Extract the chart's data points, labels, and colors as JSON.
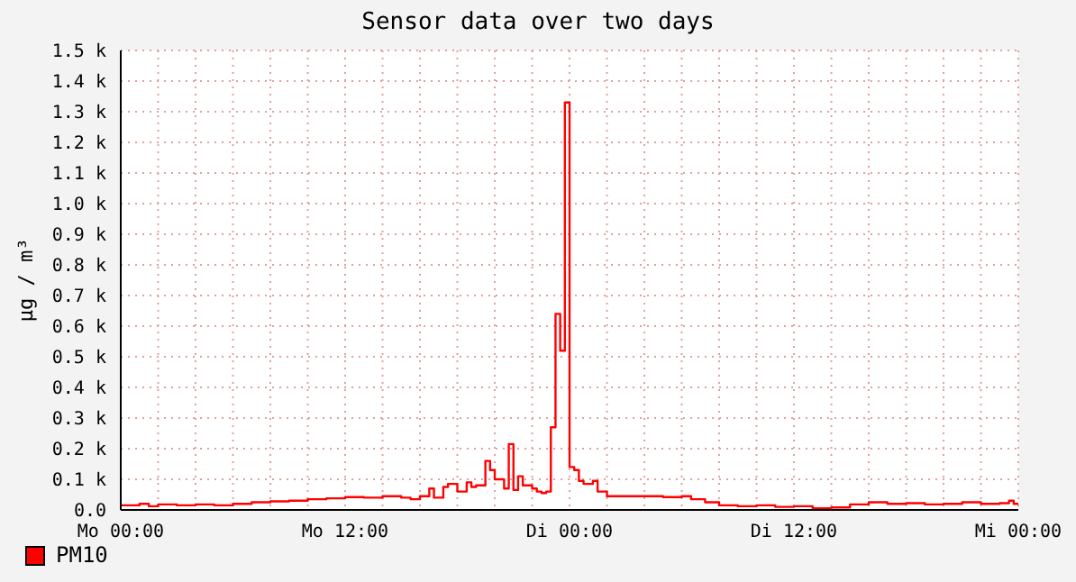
{
  "chart_data": {
    "type": "step",
    "title": "Sensor data over two days",
    "ylabel": "µg / m³",
    "categories": [
      "Mo 00:00",
      null,
      null,
      null,
      null,
      null,
      null,
      null,
      null,
      null,
      null,
      null,
      null,
      null,
      null,
      null,
      null,
      null,
      null,
      null,
      null,
      null,
      null,
      null,
      null,
      null,
      null,
      null,
      null,
      null,
      null,
      null,
      null,
      null,
      null,
      null,
      null,
      null,
      null,
      null,
      null,
      null,
      null,
      null,
      null,
      null,
      null,
      null,
      "Mo 12:00",
      null,
      null,
      null,
      null,
      null,
      null,
      null,
      null,
      null,
      null,
      null,
      null,
      null,
      null,
      null,
      null,
      null,
      null,
      null,
      null,
      null,
      null,
      null,
      null,
      null,
      null,
      null,
      null,
      null,
      null,
      null,
      null,
      null,
      null,
      null,
      null,
      null,
      null,
      null,
      null,
      null,
      null,
      null,
      null,
      null,
      null,
      null,
      "Di 00:00",
      null,
      null,
      null,
      null,
      null,
      null,
      null,
      null,
      null,
      null,
      null,
      null,
      null,
      null,
      null,
      null,
      null,
      null,
      null,
      null,
      null,
      null,
      null,
      null,
      null,
      null,
      null,
      null,
      null,
      null,
      null,
      null,
      null,
      null,
      null,
      null,
      null,
      null,
      null,
      null,
      null,
      null,
      null,
      null,
      null,
      null,
      null,
      "Di 12:00",
      null,
      null,
      null,
      null,
      null,
      null,
      null,
      null,
      null,
      null,
      null,
      null,
      null,
      null,
      null,
      null,
      null,
      null,
      null,
      null,
      null,
      null,
      null,
      null,
      null,
      null,
      null,
      null,
      null,
      null,
      null,
      null,
      null,
      null,
      null,
      null,
      null,
      null,
      null,
      null,
      null,
      null,
      null,
      null,
      null,
      null,
      null,
      "Mi 00:00"
    ],
    "series": [
      {
        "name": "PM10",
        "color": "#ff0000",
        "values": [
          15,
          15,
          15,
          15,
          20,
          20,
          12,
          12,
          18,
          18,
          18,
          18,
          15,
          15,
          15,
          15,
          18,
          18,
          18,
          18,
          15,
          15,
          15,
          15,
          20,
          20,
          20,
          20,
          25,
          25,
          25,
          25,
          28,
          28,
          28,
          28,
          30,
          30,
          30,
          30,
          35,
          35,
          35,
          35,
          38,
          38,
          38,
          38,
          42,
          42,
          42,
          42,
          40,
          40,
          40,
          40,
          45,
          45,
          45,
          45,
          40,
          40,
          35,
          35,
          45,
          45,
          70,
          40,
          40,
          75,
          85,
          85,
          60,
          60,
          90,
          75,
          80,
          80,
          160,
          130,
          100,
          100,
          70,
          215,
          65,
          110,
          80,
          80,
          70,
          60,
          55,
          60,
          270,
          640,
          520,
          1330,
          140,
          130,
          95,
          85,
          85,
          95,
          60,
          60,
          45,
          45,
          45,
          45,
          45,
          45,
          45,
          45,
          45,
          45,
          45,
          45,
          42,
          42,
          42,
          42,
          45,
          45,
          35,
          35,
          35,
          25,
          25,
          25,
          15,
          15,
          15,
          15,
          12,
          12,
          12,
          12,
          15,
          15,
          15,
          15,
          10,
          10,
          10,
          10,
          12,
          12,
          12,
          12,
          5,
          5,
          5,
          5,
          8,
          8,
          8,
          8,
          18,
          18,
          18,
          18,
          25,
          25,
          25,
          25,
          20,
          20,
          20,
          20,
          22,
          22,
          22,
          22,
          18,
          18,
          18,
          18,
          20,
          20,
          20,
          20,
          25,
          25,
          25,
          25,
          20,
          20,
          20,
          20,
          22,
          22,
          30,
          20,
          20
        ]
      }
    ],
    "ylim": [
      0,
      1500
    ],
    "yticks": [
      {
        "value": 0,
        "label": "0.0"
      },
      {
        "value": 100,
        "label": "0.1 k"
      },
      {
        "value": 200,
        "label": "0.2 k"
      },
      {
        "value": 300,
        "label": "0.3 k"
      },
      {
        "value": 400,
        "label": "0.4 k"
      },
      {
        "value": 500,
        "label": "0.5 k"
      },
      {
        "value": 600,
        "label": "0.6 k"
      },
      {
        "value": 700,
        "label": "0.7 k"
      },
      {
        "value": 800,
        "label": "0.8 k"
      },
      {
        "value": 900,
        "label": "0.9 k"
      },
      {
        "value": 1000,
        "label": "1.0 k"
      },
      {
        "value": 1100,
        "label": "1.1 k"
      },
      {
        "value": 1200,
        "label": "1.2 k"
      },
      {
        "value": 1300,
        "label": "1.3 k"
      },
      {
        "value": 1400,
        "label": "1.4 k"
      },
      {
        "value": 1500,
        "label": "1.5 k"
      }
    ],
    "grid": true,
    "legend": "bottom left"
  }
}
